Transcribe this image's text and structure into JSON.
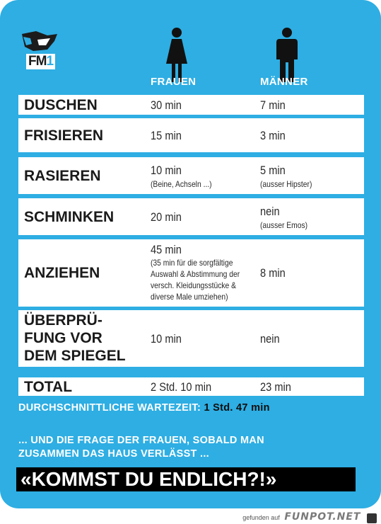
{
  "logo": {
    "text": "FM1",
    "text_main": "FM",
    "text_digit": "1"
  },
  "columns": {
    "women": "FRAUEN",
    "men": "MÄNNER"
  },
  "rows": [
    {
      "label": "DUSCHEN",
      "women": "30 min",
      "men": "7 min"
    },
    {
      "label": "FRISIEREN",
      "women": "15 min",
      "men": "3 min"
    },
    {
      "label": "RASIEREN",
      "women": "10 min",
      "women_note": "(Beine, Achseln ...)",
      "men": "5 min",
      "men_note": "(ausser Hipster)"
    },
    {
      "label": "SCHMINKEN",
      "women": "20 min",
      "men": "nein",
      "men_note": "(ausser Emos)"
    },
    {
      "label": "ANZIEHEN",
      "women": "45 min",
      "women_note_lines": [
        "(35 min für die sorgfältige",
        "Auswahl & Abstimmung der",
        "versch. Kleidungsstücke &",
        "diverse Male umziehen)"
      ],
      "men": "8 min"
    },
    {
      "label_lines": [
        "ÜBERPRÜ-",
        "FUNG VOR",
        "DEM SPIEGEL"
      ],
      "women": "10 min",
      "men": "nein"
    },
    {
      "label": "TOTAL",
      "women": "2 Std. 10 min",
      "men": "23 min"
    }
  ],
  "summary": {
    "label": "DURCHSCHNITTLICHE WARTEZEIT:",
    "value": "1 Std. 47 min"
  },
  "question_lines": [
    "... UND DIE FRAGE DER FRAUEN, SOBALD MAN",
    "ZUSAMMEN DAS HAUS VERLÄSST ..."
  ],
  "shout": "«KOMMST DU ENDLICH?!»",
  "footer": {
    "prefix": "gefunden auf",
    "brand": "FUNPOT.NET"
  },
  "colors": {
    "background": "#2eaee3",
    "panel": "#ffffff",
    "text": "#1a1a1a",
    "banner": "#000000"
  },
  "icons": [
    "fm1-logo",
    "woman-icon",
    "man-icon"
  ]
}
